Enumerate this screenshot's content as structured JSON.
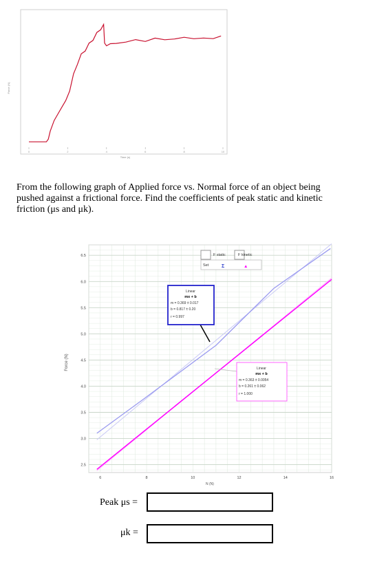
{
  "question": {
    "line1": "From the following graph of Applied force vs. Normal force of an object being",
    "line2": "pushed against a frictional force.  Find the coefficients of peak static and kinetic",
    "line3": "friction (μs and μk)."
  },
  "answers": {
    "static_label": "Peak μs =",
    "kinetic_label": "μk =",
    "static_value": "",
    "kinetic_value": ""
  },
  "colors": {
    "force_trace": "#c8102e",
    "static_line": "#9a9af0",
    "kinetic_line": "#ff00ff",
    "static_fit_box": "#2222cc",
    "kinetic_fit_box": "#ff66ff",
    "grid": "#dde8dd"
  },
  "chart_data": [
    {
      "type": "line",
      "xlabel": "Time (s)",
      "ylabel": "Force (N)",
      "x_ticks": [
        "0",
        "2",
        "4",
        "6",
        "8",
        "10"
      ],
      "xlim": [
        0,
        10
      ],
      "ylim": [
        0,
        1
      ],
      "grid": false,
      "series": [
        {
          "x": [
            0,
            0.4,
            0.9,
            1.0,
            1.1,
            1.3,
            1.5,
            1.7,
            1.9,
            2.1,
            2.3,
            2.5,
            2.7,
            2.9,
            3.1,
            3.3,
            3.5,
            3.7,
            3.85,
            3.9,
            4.0,
            4.2,
            4.5,
            5.0,
            5.5,
            6.0,
            6.5,
            7.0,
            7.5,
            8.0,
            8.5,
            9.0,
            9.5,
            9.9
          ],
          "y": [
            0.04,
            0.04,
            0.04,
            0.06,
            0.12,
            0.2,
            0.25,
            0.3,
            0.35,
            0.42,
            0.55,
            0.62,
            0.7,
            0.72,
            0.78,
            0.8,
            0.86,
            0.88,
            0.92,
            0.78,
            0.76,
            0.77,
            0.78,
            0.79,
            0.8,
            0.8,
            0.81,
            0.81,
            0.81,
            0.82,
            0.82,
            0.81,
            0.82,
            0.83
          ]
        }
      ]
    },
    {
      "type": "line",
      "xlabel": "N (N)",
      "ylabel": "Force (N)",
      "x_ticks": [
        "6",
        "8",
        "10",
        "12",
        "14",
        "16"
      ],
      "y_ticks": [
        "2.5",
        "3.0",
        "3.5",
        "4.0",
        "4.5",
        "5.0",
        "5.5",
        "6.0",
        "6.5"
      ],
      "xlim": [
        5.5,
        16
      ],
      "ylim": [
        2.35,
        6.7
      ],
      "grid": true,
      "legend": {
        "position": "top-right",
        "set_label": "Set",
        "items": [
          "F static",
          "F kinetic"
        ],
        "markers": [
          "Σ",
          "▲"
        ]
      },
      "series": [
        {
          "name": "F static",
          "x": [
            5.85,
            7.8,
            11.0,
            13.5,
            15.95
          ],
          "y": [
            3.1,
            3.73,
            4.78,
            5.87,
            6.63
          ]
        },
        {
          "name": "F kinetic",
          "x": [
            5.85,
            16.0
          ],
          "y": [
            2.41,
            6.04
          ]
        }
      ],
      "fits": [
        {
          "title": "Linear",
          "formula": "mx + b",
          "m": "m = 0.369 ± 0.017",
          "b": "b = 0.817 ± 0.20",
          "r": "r = 0.997",
          "slope": 0.369,
          "intercept": 0.817,
          "x_range": [
            5.85,
            16
          ]
        },
        {
          "title": "Linear",
          "formula": "mx + b",
          "m": "m = 0.363 ± 0.0054",
          "b": "b = 0.261 ± 0.062",
          "r": "r = 1.000",
          "slope": 0.363,
          "intercept": 0.261,
          "x_range": [
            5.85,
            16
          ]
        }
      ]
    }
  ]
}
